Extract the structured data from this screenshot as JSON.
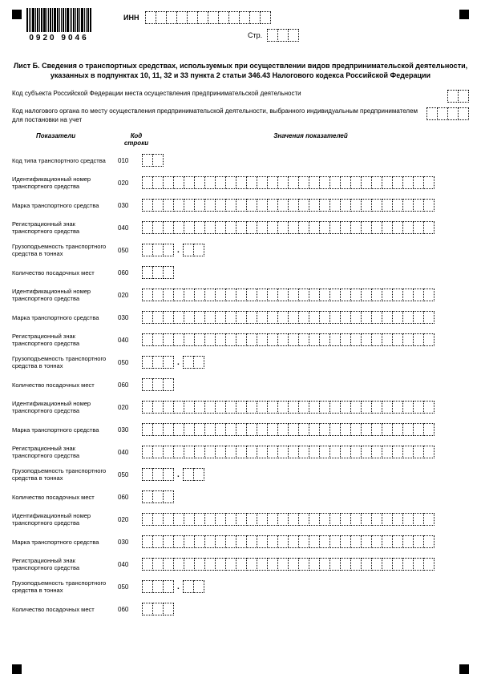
{
  "header": {
    "barcode_text": "0920 9046",
    "inn_label": "ИНН",
    "page_label": "Стр."
  },
  "title": "Лист Б. Сведения о транспортных средствах, используемых при осуществлении видов предпринимательской деятельности, указанных в подпунктах 10, 11, 32 и 33 пункта 2 статьи 346.43 Налогового кодекса Российской Федерации",
  "line1": "Код субъекта Российской Федерации места осуществления предпринимательской деятельности",
  "line2": "Код налогового органа по месту осуществления предпринимательской деятельности, выбранного индивидуальным предпринимателем для постановки на учет",
  "columns": {
    "c1": "Показатели",
    "c2": "Код строки",
    "c3": "Значения показателей"
  },
  "rows": {
    "r010": {
      "label": "Код типа транспортного средства",
      "code": "010"
    },
    "r020": {
      "label": "Идентификационный номер транспортного средства",
      "code": "020"
    },
    "r030": {
      "label": "Марка транспортного средства",
      "code": "030"
    },
    "r040": {
      "label": "Регистрационный знак транспортного средства",
      "code": "040"
    },
    "r050": {
      "label": "Грузоподъемность транспортного средства в тоннах",
      "code": "050"
    },
    "r060": {
      "label": "Количество посадочных мест",
      "code": "060"
    }
  }
}
